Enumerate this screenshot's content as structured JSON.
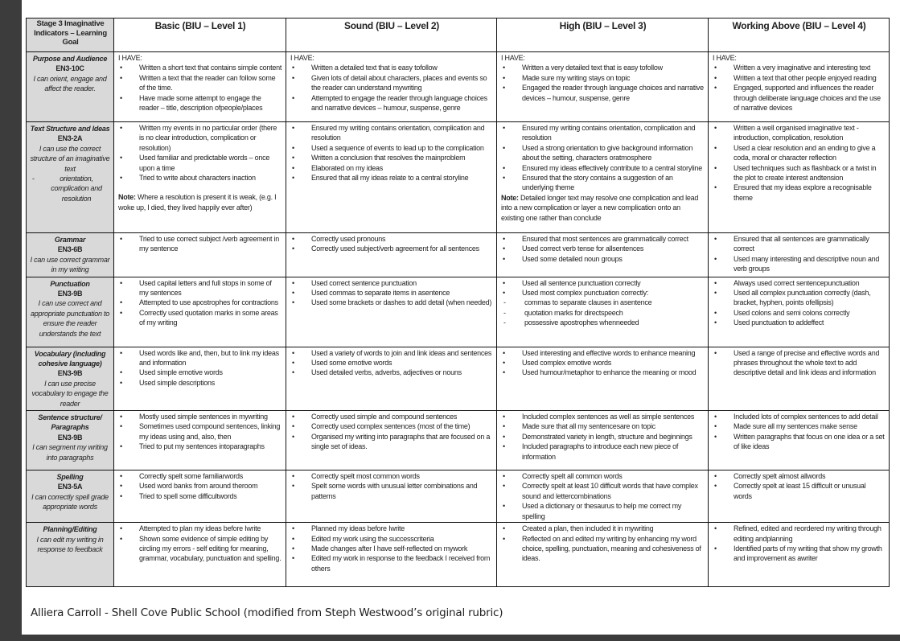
{
  "header": {
    "goal_col": "Stage 3 Imaginative Indicators – Learning Goal",
    "levels": [
      "Basic (BIU – Level 1)",
      "Sound (BIU – Level 2)",
      "High (BIU – Level 3)",
      "Working Above (BIU – Level 4)"
    ]
  },
  "rows": [
    {
      "goal": {
        "title": "Purpose and Audience",
        "code": "EN3-10C",
        "desc": "I can orient, engage and affect the reader."
      },
      "cells": [
        {
          "intro": "I HAVE:",
          "items": [
            {
              "kind": "bullet",
              "text": "Written a short text that contains simple content"
            },
            {
              "kind": "bullet",
              "text": "Written a text that the reader can follow some of the time."
            },
            {
              "kind": "bullet",
              "text": "Have made some attempt to engage the reader – title, description ofpeople/places"
            }
          ]
        },
        {
          "intro": "I HAVE:",
          "items": [
            {
              "kind": "bullet",
              "text": "Written a detailed text that is easy tofollow"
            },
            {
              "kind": "bullet",
              "text": "Given lots of detail about characters, places and events so the reader can understand mywriting"
            },
            {
              "kind": "bullet",
              "text": "Attempted to engage the reader through language choices and narrative devices – humour, suspense, genre"
            }
          ]
        },
        {
          "intro": "I HAVE:",
          "items": [
            {
              "kind": "bullet",
              "text": "Written a very detailed text that is easy tofollow"
            },
            {
              "kind": "bullet",
              "text": "Made sure my writing stays on topic"
            },
            {
              "kind": "bullet",
              "text": "Engaged the reader through language choices and narrative devices – humour, suspense, genre"
            }
          ]
        },
        {
          "intro": "I HAVE:",
          "items": [
            {
              "kind": "bullet",
              "text": "Written a very imaginative and interesting text"
            },
            {
              "kind": "bullet",
              "text": "Written a text that other people enjoyed reading"
            },
            {
              "kind": "bullet",
              "text": "Engaged, supported and influences the reader through deliberate language choices and the use of narrative devices"
            }
          ]
        }
      ]
    },
    {
      "goal": {
        "title": "Text Structure and Ideas",
        "code": "EN3-2A",
        "desc": "I can use the correct structure of an imaginative text",
        "dash": "orientation, complication and resolution"
      },
      "cells": [
        {
          "items": [
            {
              "kind": "bullet",
              "text": "Written my events in no particular order (there is no clear introduction, complication or resolution)"
            },
            {
              "kind": "bullet",
              "text": "Used familiar and predictable words – once upon a time"
            },
            {
              "kind": "bullet",
              "text": "Tried to write about characters inaction"
            }
          ],
          "note_label": "Note:",
          "note": "Where a resolution is present it is weak, (e.g. I woke up, I died, they lived happily ever after)"
        },
        {
          "items": [
            {
              "kind": "bullet",
              "text": "Ensured my writing contains orientation, complication and resolution"
            },
            {
              "kind": "bullet",
              "text": "Used a sequence of events to lead up to the complication"
            },
            {
              "kind": "bullet",
              "text": "Written a conclusion that resolves the mainproblem"
            },
            {
              "kind": "bullet",
              "text": "Elaborated on my ideas"
            },
            {
              "kind": "bullet",
              "text": "Ensured that all my ideas relate to a central storyline"
            }
          ]
        },
        {
          "items": [
            {
              "kind": "bullet",
              "text": "Ensured my writing contains orientation, complication and resolution"
            },
            {
              "kind": "bullet",
              "text": "Used a strong orientation to give background information about the setting, characters oratmosphere"
            },
            {
              "kind": "bullet",
              "text": "Ensured my ideas effectively contribute to a central storyline"
            },
            {
              "kind": "bullet",
              "text": "Ensured that the story contains a suggestion of an underlying theme"
            }
          ],
          "note_label": "Note:",
          "note": "Detailed longer text may resolve one complication and lead into a new complication or layer a new complication onto an existing one rather than conclude"
        },
        {
          "items": [
            {
              "kind": "bullet",
              "text": "Written a well organised imaginative text - introduction, complication, resolution"
            },
            {
              "kind": "bullet",
              "text": "Used a clear resolution and an ending to give a coda, moral or character reflection"
            },
            {
              "kind": "bullet",
              "text": "Used techniques such as flashback or a twist in the plot to create interest andtension"
            },
            {
              "kind": "bullet",
              "text": "Ensured that my ideas explore a recognisable theme"
            }
          ]
        }
      ]
    },
    {
      "goal": {
        "title": "Grammar",
        "code": "EN3-6B",
        "desc": "I can use correct grammar in my writing"
      },
      "cells": [
        {
          "items": [
            {
              "kind": "bullet",
              "text": "Tried to use correct subject /verb agreement in my sentence"
            }
          ]
        },
        {
          "items": [
            {
              "kind": "bullet",
              "text": "Correctly used pronouns"
            },
            {
              "kind": "bullet",
              "text": "Correctly used subject/verb agreement for all sentences"
            }
          ]
        },
        {
          "items": [
            {
              "kind": "bullet",
              "text": "Ensured that most sentences are grammatically correct"
            },
            {
              "kind": "bullet",
              "text": "Used correct verb tense for allsentences"
            },
            {
              "kind": "bullet",
              "text": "Used some detailed noun groups"
            }
          ]
        },
        {
          "items": [
            {
              "kind": "bullet",
              "text": "Ensured that all sentences are grammatically correct"
            },
            {
              "kind": "bullet",
              "text": "Used many interesting and descriptive noun and verb groups"
            }
          ]
        }
      ]
    },
    {
      "goal": {
        "title": "Punctuation",
        "code": "EN3-9B",
        "desc": "I can use correct and appropriate punctuation to ensure the reader understands the text"
      },
      "cells": [
        {
          "items": [
            {
              "kind": "bullet",
              "text": "Used capital letters and full stops in some of my sentences"
            },
            {
              "kind": "bullet",
              "text": "Attempted to use apostrophes for contractions"
            },
            {
              "kind": "bullet",
              "text": "Correctly used quotation marks in some areas of my writing"
            }
          ]
        },
        {
          "items": [
            {
              "kind": "bullet",
              "text": "Used correct sentence punctuation"
            },
            {
              "kind": "bullet",
              "text": "Used commas to separate items in asentence"
            },
            {
              "kind": "bullet",
              "text": "Used some brackets or dashes to add detail (when needed)"
            }
          ]
        },
        {
          "items": [
            {
              "kind": "bullet",
              "text": "Used all sentence punctuation correctly"
            },
            {
              "kind": "bullet",
              "text": "Used most complex punctuation correctly:"
            },
            {
              "kind": "dash",
              "text": "commas to separate clauses in asentence"
            },
            {
              "kind": "dash",
              "text": "quotation marks for directspeech"
            },
            {
              "kind": "dash",
              "text": "possessive apostrophes whenneeded"
            }
          ]
        },
        {
          "items": [
            {
              "kind": "bullet",
              "text": "Always used correct sentencepunctuation"
            },
            {
              "kind": "bullet",
              "text": "Used all complex punctuation correctly (dash, bracket, hyphen, points ofellipsis)"
            },
            {
              "kind": "bullet",
              "text": "Used colons and semi colons correctly"
            },
            {
              "kind": "bullet",
              "text": "Used punctuation to addeffect"
            }
          ]
        }
      ]
    },
    {
      "goal": {
        "title": "Vocabulary (including cohesive language)",
        "code": "EN3-9B",
        "desc": "I can use precise vocabulary to engage the reader"
      },
      "cells": [
        {
          "items": [
            {
              "kind": "bullet",
              "text": "Used words like and, then, but to link my ideas and information"
            },
            {
              "kind": "bullet",
              "text": "Used simple emotive words"
            },
            {
              "kind": "bullet",
              "text": "Used simple descriptions"
            }
          ]
        },
        {
          "items": [
            {
              "kind": "bullet",
              "text": "Used a variety of words to join and link ideas and sentences"
            },
            {
              "kind": "bullet",
              "text": "Used some emotive words"
            },
            {
              "kind": "bullet",
              "text": "Used detailed verbs, adverbs, adjectives or nouns"
            }
          ]
        },
        {
          "items": [
            {
              "kind": "bullet",
              "text": "Used interesting and effective words to enhance meaning"
            },
            {
              "kind": "bullet",
              "text": "Used complex emotive words"
            },
            {
              "kind": "bullet",
              "text": "Used humour/metaphor to enhance the meaning or mood"
            }
          ]
        },
        {
          "items": [
            {
              "kind": "bullet",
              "text": "Used a range of precise and effective words and phrases throughout the whole text to add descriptive detail and link ideas and information"
            }
          ]
        }
      ]
    },
    {
      "goal": {
        "title": "Sentence structure/ Paragraphs",
        "code": "EN3-9B",
        "desc": "I can segment my writing into paragraphs"
      },
      "cells": [
        {
          "items": [
            {
              "kind": "bullet",
              "text": "Mostly used simple sentences in mywriting"
            },
            {
              "kind": "bullet",
              "text": "Sometimes used compound sentences, linking my ideas using and, also, then"
            },
            {
              "kind": "bullet",
              "text": "Tried to put my sentences intoparagraphs"
            }
          ]
        },
        {
          "items": [
            {
              "kind": "bullet",
              "text": "Correctly used simple and compound sentences"
            },
            {
              "kind": "bullet",
              "text": "Correctly used complex sentences (most of the time)"
            },
            {
              "kind": "bullet",
              "text": "Organised my writing into paragraphs that are focused on a single set of ideas."
            }
          ]
        },
        {
          "items": [
            {
              "kind": "bullet",
              "text": "Included complex sentences as well as simple sentences"
            },
            {
              "kind": "bullet",
              "text": "Made sure that all my sentencesare on topic"
            },
            {
              "kind": "bullet",
              "text": "Demonstrated variety in length, structure and beginnings"
            },
            {
              "kind": "bullet",
              "text": "Included paragraphs to introduce each new piece of information"
            }
          ]
        },
        {
          "items": [
            {
              "kind": "bullet",
              "text": "Included lots of complex sentences to add detail"
            },
            {
              "kind": "bullet",
              "text": "Made sure all my sentences make sense"
            },
            {
              "kind": "bullet",
              "text": "Written paragraphs that focus on one idea or a set of like ideas"
            }
          ]
        }
      ]
    },
    {
      "goal": {
        "title": "Spelling",
        "code": "EN3-5A",
        "desc": "I can correctly spell grade appropriate words"
      },
      "cells": [
        {
          "items": [
            {
              "kind": "bullet",
              "text": "Correctly spelt some familiarwords"
            },
            {
              "kind": "bullet",
              "text": "Used word banks from around theroom"
            },
            {
              "kind": "bullet",
              "text": "Tried to spell some difficultwords"
            }
          ]
        },
        {
          "items": [
            {
              "kind": "bullet",
              "text": "Correctly spelt most common words"
            },
            {
              "kind": "bullet",
              "text": "Spelt some words with unusual letter combinations and patterns"
            }
          ]
        },
        {
          "items": [
            {
              "kind": "bullet",
              "text": "Correctly spelt all common words"
            },
            {
              "kind": "bullet",
              "text": "Correctly spelt at least 10 difficult words that have complex sound and lettercombinations"
            },
            {
              "kind": "bullet",
              "text": "Used a dictionary or thesaurus to help me correct my spelling"
            }
          ]
        },
        {
          "items": [
            {
              "kind": "bullet",
              "text": "Correctly spelt almost allwords"
            },
            {
              "kind": "bullet",
              "text": "Correctly spelt at least 15 difficult or unusual words"
            }
          ]
        }
      ]
    },
    {
      "goal": {
        "title": "Planning/Editing",
        "desc": "I can edit my writing in response to feedback"
      },
      "cells": [
        {
          "items": [
            {
              "kind": "bullet",
              "text": "Attempted to plan my ideas before Iwrite"
            },
            {
              "kind": "bullet",
              "text": "Shown some evidence of simple editing by circling my errors - self editing for meaning, grammar, vocabulary, punctuation and spelling."
            }
          ]
        },
        {
          "items": [
            {
              "kind": "bullet",
              "text": "Planned my ideas before Iwrite"
            },
            {
              "kind": "bullet",
              "text": "Edited my work using the successcriteria"
            },
            {
              "kind": "bullet",
              "text": "Made changes after I have self-reflected on mywork"
            },
            {
              "kind": "bullet",
              "text": "Edited my work in response to the feedback I received from others"
            }
          ]
        },
        {
          "items": [
            {
              "kind": "bullet",
              "text": "Created a plan, then included it in mywriting"
            },
            {
              "kind": "bullet",
              "text": "Reflected on and edited my writing by enhancing my word choice, spelling, punctuation, meaning and cohesiveness of ideas."
            }
          ]
        },
        {
          "items": [
            {
              "kind": "bullet",
              "text": "Refined, edited and reordered my writing through editing andplanning"
            },
            {
              "kind": "bullet",
              "text": "Identified parts of my writing that show my growth and improvement as awriter"
            }
          ]
        }
      ]
    }
  ],
  "markers": {
    "bullet": "•",
    "dash": "-"
  },
  "footer": "Alliera Carroll - Shell Cove Public School (modified from Steph Westwood’s original rubric)"
}
